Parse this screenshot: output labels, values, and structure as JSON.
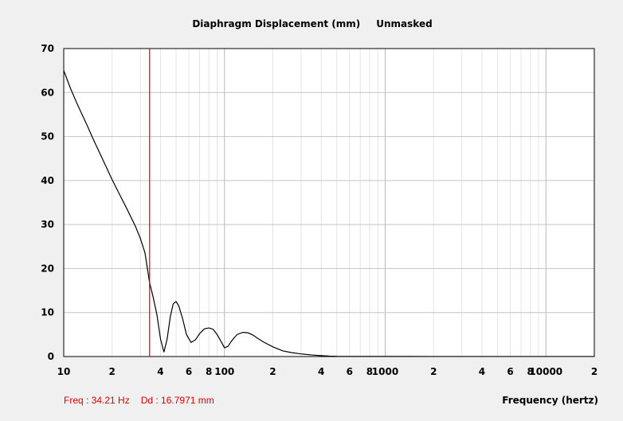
{
  "chart_data": {
    "type": "line",
    "title": "Diaphragm Displacement (mm)",
    "mask_label": "Unmasked",
    "xlabel": "Frequency (hertz)",
    "ylabel": "",
    "x_scale": "log",
    "xlim": [
      10,
      20000
    ],
    "ylim": [
      0,
      70
    ],
    "grid": true,
    "y_ticks": [
      {
        "value": 0,
        "label": "0"
      },
      {
        "value": 10,
        "label": "10"
      },
      {
        "value": 20,
        "label": "20"
      },
      {
        "value": 30,
        "label": "30"
      },
      {
        "value": 40,
        "label": "40"
      },
      {
        "value": 50,
        "label": "50"
      },
      {
        "value": 60,
        "label": "60"
      },
      {
        "value": 70,
        "label": "70"
      }
    ],
    "x_ticks": [
      {
        "value": 10,
        "label": "10"
      },
      {
        "value": 20,
        "label": "2"
      },
      {
        "value": 40,
        "label": "4"
      },
      {
        "value": 60,
        "label": "6"
      },
      {
        "value": 80,
        "label": "8"
      },
      {
        "value": 100,
        "label": "100"
      },
      {
        "value": 200,
        "label": "2"
      },
      {
        "value": 400,
        "label": "4"
      },
      {
        "value": 600,
        "label": "6"
      },
      {
        "value": 800,
        "label": "8"
      },
      {
        "value": 1000,
        "label": "1000"
      },
      {
        "value": 2000,
        "label": "2"
      },
      {
        "value": 4000,
        "label": "4"
      },
      {
        "value": 6000,
        "label": "6"
      },
      {
        "value": 8000,
        "label": "8"
      },
      {
        "value": 10000,
        "label": "10000"
      },
      {
        "value": 20000,
        "label": "2"
      }
    ],
    "x_major_gridlines": [
      10,
      100,
      1000,
      10000
    ],
    "cursor": {
      "freq": 34.21,
      "value": 16.7971,
      "color": "#e00000"
    },
    "readout": {
      "freq_text": "Freq : 34.21 Hz",
      "value_text": "Dd : 16.7971 mm"
    },
    "series": [
      {
        "color": "#000000",
        "x": [
          10,
          11,
          12,
          13,
          14,
          15,
          16,
          18,
          20,
          22,
          25,
          28,
          30,
          32,
          34.21,
          36,
          38,
          40,
          42,
          44,
          46,
          48,
          50,
          52,
          55,
          58,
          62,
          66,
          70,
          75,
          80,
          85,
          90,
          95,
          100,
          105,
          110,
          115,
          120,
          130,
          140,
          150,
          160,
          175,
          200,
          230,
          260,
          300,
          350,
          400,
          450,
          500,
          600,
          800,
          1000,
          2000,
          5000,
          10000,
          20000
        ],
        "y": [
          65,
          61,
          57.8,
          55,
          52.5,
          50,
          47.8,
          43.8,
          40.2,
          37.2,
          33.2,
          29.5,
          26.8,
          23.6,
          16.8,
          13.5,
          9.5,
          4,
          1,
          4,
          9,
          12,
          12.5,
          11.5,
          8.5,
          5,
          3.2,
          3.8,
          5.2,
          6.3,
          6.5,
          6.2,
          5,
          3.5,
          2,
          2.3,
          3.4,
          4.3,
          5,
          5.5,
          5.4,
          4.9,
          4.2,
          3.3,
          2.2,
          1.3,
          0.9,
          0.6,
          0.35,
          0.2,
          0.1,
          0.05,
          0.03,
          0.02,
          0.02,
          0.01,
          0.01,
          0.01,
          0.01
        ]
      }
    ]
  }
}
